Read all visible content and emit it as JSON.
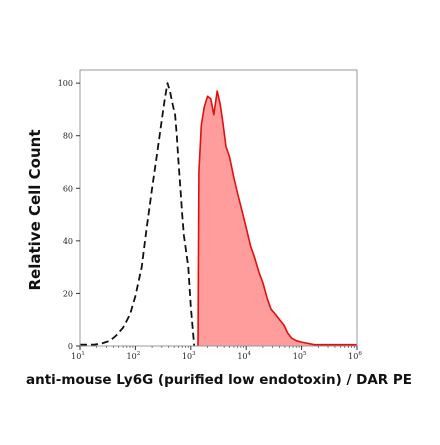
{
  "chart_data": {
    "type": "area",
    "title": "",
    "xlabel": "anti-mouse Ly6G (purified low endotoxin) / DAR PE",
    "ylabel": "Relative Cell Count",
    "xscale": "log",
    "xlim": [
      10,
      1000000
    ],
    "ylim": [
      0,
      105
    ],
    "grid": false,
    "legend": "none",
    "y_ticks": [
      {
        "value": 0,
        "label": "0"
      },
      {
        "value": 20,
        "label": "20"
      },
      {
        "value": 40,
        "label": "40"
      },
      {
        "value": 60,
        "label": "60"
      },
      {
        "value": 80,
        "label": "80"
      },
      {
        "value": 100,
        "label": "100"
      }
    ],
    "x_ticks": [
      {
        "value": 10,
        "base": "10",
        "exp": "1"
      },
      {
        "value": 100,
        "base": "10",
        "exp": "2"
      },
      {
        "value": 1000,
        "base": "10",
        "exp": "3"
      },
      {
        "value": 10000,
        "base": "10",
        "exp": "4"
      },
      {
        "value": 100000,
        "base": "10",
        "exp": "5"
      },
      {
        "value": 1000000,
        "base": "10",
        "exp": "6"
      }
    ],
    "series": [
      {
        "style": "dashed-outline",
        "color": "#111111",
        "x": [
          10,
          18,
          25,
          35,
          45,
          60,
          80,
          100,
          130,
          160,
          200,
          250,
          300,
          340,
          380,
          420,
          470,
          520,
          560,
          600,
          650,
          700,
          750,
          800,
          900,
          1000,
          1150
        ],
        "y": [
          0.5,
          0.5,
          1,
          2,
          4,
          7,
          12,
          19,
          30,
          45,
          60,
          74,
          86,
          94,
          100,
          97,
          92,
          88,
          80,
          70,
          60,
          50,
          42,
          38,
          30,
          15,
          0
        ]
      },
      {
        "style": "filled",
        "color": "#e01010",
        "fill": "#ff9c9c",
        "x": [
          1350,
          1400,
          1550,
          1750,
          2000,
          2300,
          2600,
          3000,
          3400,
          3800,
          4300,
          5000,
          6000,
          7000,
          8500,
          10000,
          12000,
          14000,
          17000,
          20000,
          24000,
          28000,
          34000,
          40000,
          48000,
          56000,
          66000,
          80000,
          100000,
          130000,
          170000,
          220000,
          300000,
          500000,
          1000000
        ],
        "y": [
          0,
          66,
          84,
          91,
          95,
          94,
          88,
          97,
          92,
          85,
          76,
          72,
          64,
          58,
          51,
          45,
          38,
          34,
          28,
          24,
          18,
          14,
          12,
          10,
          8,
          5,
          3,
          2,
          1.5,
          1,
          0.5,
          0.5,
          0.5,
          0.5,
          0.5
        ]
      }
    ]
  }
}
